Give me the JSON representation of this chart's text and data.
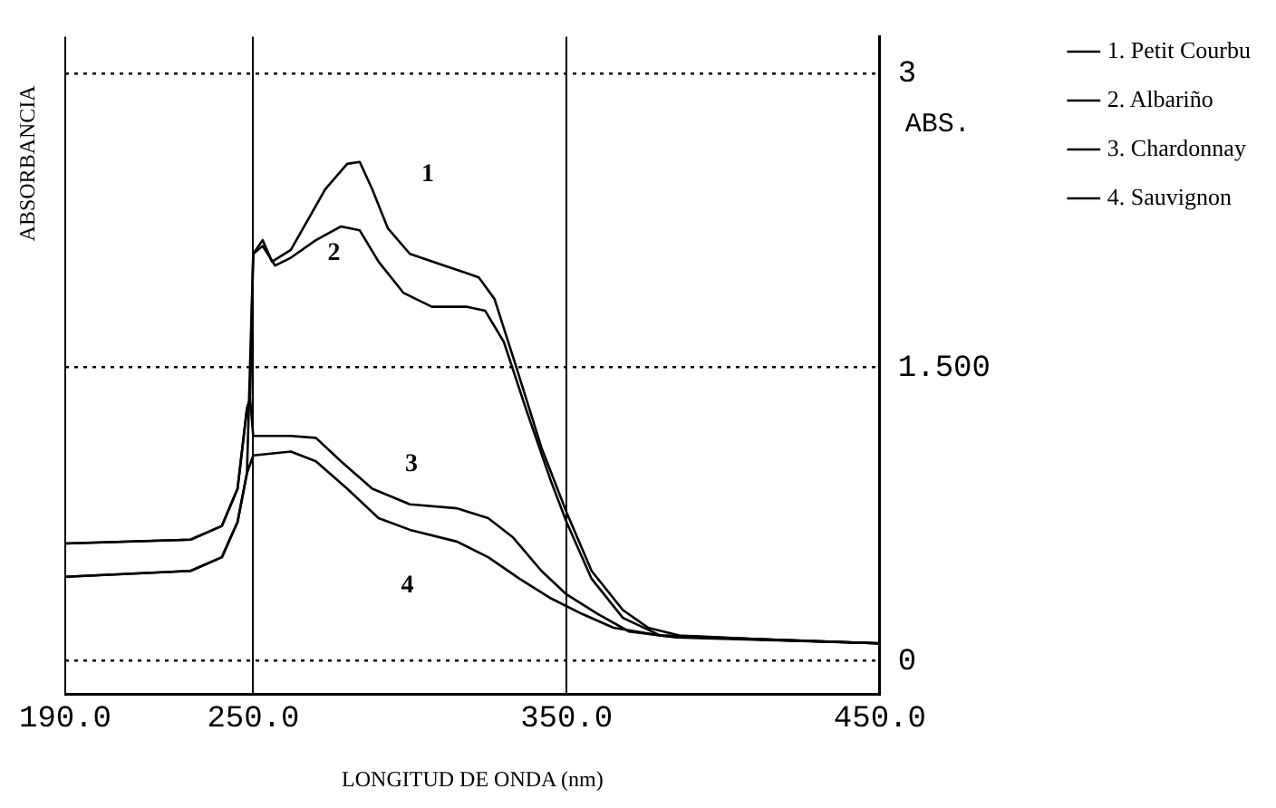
{
  "chart_data": {
    "type": "line",
    "xlabel": "LONGITUD DE ONDA (nm)",
    "ylabel": "ABSORBANCIA",
    "xlim": [
      190,
      450
    ],
    "ylim": [
      -0.17,
      3.19
    ],
    "xticks": [
      {
        "value": 190,
        "label": "190.0"
      },
      {
        "value": 250,
        "label": "250.0"
      },
      {
        "value": 350,
        "label": "350.0"
      },
      {
        "value": 450,
        "label": "450.0"
      }
    ],
    "yticks": [
      0,
      {
        "value": 1.5,
        "label": "1.500"
      },
      3
    ],
    "grid": true,
    "legend": "right",
    "marker": "none",
    "line_style": "solid",
    "series": [
      {
        "name": "1. Petit Courbu",
        "color": "#000000",
        "x": [
          190,
          230,
          240,
          245,
          248,
          249,
          250,
          253,
          256,
          262,
          273,
          280,
          284,
          288,
          293,
          300,
          311,
          322,
          327,
          334,
          342,
          350,
          358,
          368,
          376,
          386,
          412,
          450
        ],
        "values": [
          0.6,
          0.62,
          0.69,
          0.88,
          1.29,
          1.34,
          2.08,
          2.15,
          2.04,
          2.1,
          2.41,
          2.54,
          2.55,
          2.41,
          2.21,
          2.08,
          2.02,
          1.96,
          1.85,
          1.5,
          1.09,
          0.76,
          0.46,
          0.26,
          0.17,
          0.13,
          0.11,
          0.09
        ]
      },
      {
        "name": "2. Albariño",
        "color": "#000000",
        "x": [
          190,
          230,
          240,
          245,
          248,
          250,
          253,
          257,
          262,
          270,
          278,
          284,
          290,
          298,
          307,
          318,
          324,
          330,
          337,
          345,
          350,
          358,
          368,
          380,
          412,
          450
        ],
        "values": [
          0.43,
          0.46,
          0.53,
          0.71,
          0.96,
          2.08,
          2.12,
          2.02,
          2.06,
          2.15,
          2.22,
          2.2,
          2.04,
          1.88,
          1.81,
          1.81,
          1.79,
          1.63,
          1.29,
          0.92,
          0.71,
          0.42,
          0.22,
          0.13,
          0.11,
          0.09
        ]
      },
      {
        "name": "3. Chardonnay",
        "color": "#000000",
        "x": [
          190,
          230,
          240,
          245,
          248,
          249,
          250,
          262,
          270,
          278,
          288,
          300,
          315,
          325,
          333,
          342,
          350,
          360,
          370,
          385,
          450
        ],
        "values": [
          0.6,
          0.62,
          0.69,
          0.88,
          1.29,
          1.34,
          1.15,
          1.15,
          1.14,
          1.02,
          0.88,
          0.8,
          0.78,
          0.73,
          0.63,
          0.46,
          0.34,
          0.24,
          0.15,
          0.12,
          0.09
        ]
      },
      {
        "name": "4. Sauvignon",
        "color": "#000000",
        "x": [
          190,
          230,
          240,
          245,
          248,
          250,
          262,
          270,
          280,
          290,
          300,
          315,
          325,
          335,
          345,
          355,
          365,
          380,
          450
        ],
        "values": [
          0.43,
          0.46,
          0.53,
          0.71,
          0.96,
          1.05,
          1.07,
          1.02,
          0.88,
          0.73,
          0.67,
          0.61,
          0.53,
          0.42,
          0.32,
          0.24,
          0.17,
          0.13,
          0.09
        ]
      }
    ],
    "annotations": [
      "1",
      "2",
      "3",
      "4",
      "ABS."
    ]
  }
}
